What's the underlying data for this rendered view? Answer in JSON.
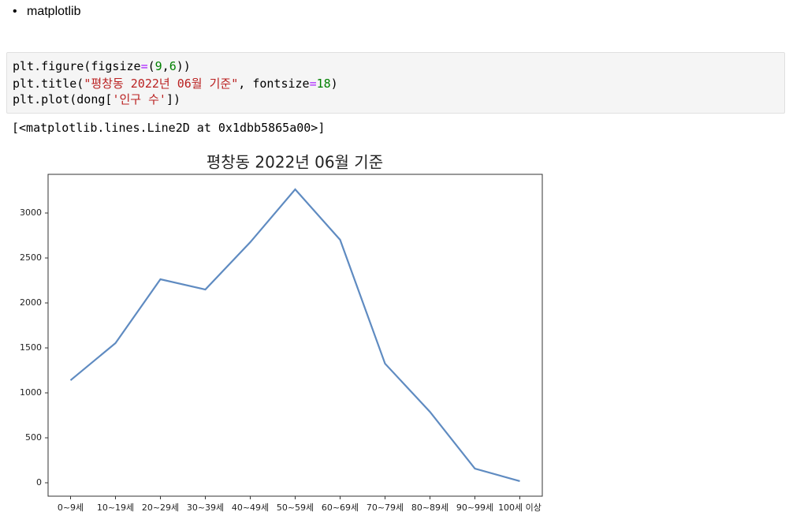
{
  "bullet": "matplotlib",
  "code": {
    "lines": [
      [
        "plt.figure(figsize",
        "=",
        "(",
        "9",
        ",",
        "6",
        "))"
      ],
      [
        "plt.title(",
        "\"평창동 2022년 06월 기준\"",
        ", fontsize",
        "=",
        "18",
        ")"
      ],
      [
        "plt.plot(dong[",
        "'인구 수'",
        "])"
      ]
    ]
  },
  "output": "[<matplotlib.lines.Line2D at 0x1dbb5865a00>]",
  "chart_data": {
    "type": "line",
    "title": "평창동 2022년 06월 기준",
    "categories": [
      "0~9세",
      "10~19세",
      "20~29세",
      "30~39세",
      "40~49세",
      "50~59세",
      "60~69세",
      "70~79세",
      "80~89세",
      "90~99세",
      "100세 이상"
    ],
    "values": [
      1140,
      1553,
      2263,
      2149,
      2675,
      3263,
      2702,
      1325,
      789,
      158,
      18
    ],
    "color": "#5f8bc1",
    "ylim": [
      -149,
      3430
    ],
    "yticks": [
      0,
      500,
      1000,
      1500,
      2000,
      2500,
      3000
    ],
    "grid": false
  }
}
